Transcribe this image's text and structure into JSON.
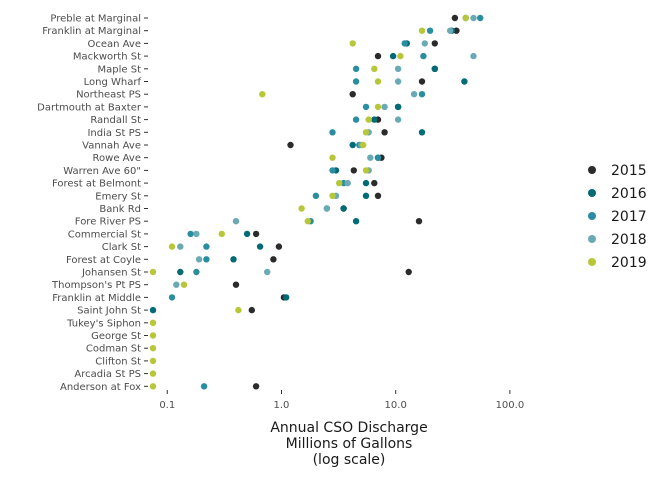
{
  "chart_data": {
    "type": "scatter",
    "xscale": "log",
    "xlim": [
      0.075,
      150
    ],
    "xticks": [
      "0.1",
      "1.0",
      "10.0",
      "100.0"
    ],
    "xlabel": [
      "Annual CSO Discharge",
      "Millions of Gallons",
      "(log scale)"
    ],
    "legend_position": "right",
    "grid": false,
    "categories": [
      "Preble at Marginal",
      "Franklin at Marginal",
      "Ocean Ave",
      "Mackworth St",
      "Maple St",
      "Long Wharf",
      "Northeast PS",
      "Dartmouth at Baxter",
      "Randall St",
      "India St PS",
      "Vannah Ave",
      "Rowe Ave",
      "Warren Ave 60\"",
      "Forest at Belmont",
      "Emery St",
      "Bank Rd",
      "Fore River PS",
      "Commercial St",
      "Clark St",
      "Forest at Coyle",
      "Johansen St",
      "Thompson's Pt PS",
      "Franklin at Middle",
      "Saint John St",
      "Tukey's Siphon",
      "George St",
      "Codman St",
      "Clifton St",
      "Arcadia St PS",
      "Anderson at Fox"
    ],
    "series": [
      {
        "name": "2015",
        "color": "#2b2b2b",
        "values": [
          33,
          34,
          22,
          7,
          22,
          17,
          4.2,
          10.5,
          7,
          8,
          1.2,
          7.5,
          4.3,
          6.5,
          7,
          3.5,
          16,
          0.6,
          0.95,
          0.85,
          13,
          0.4,
          1.05,
          0.55,
          null,
          null,
          null,
          null,
          null,
          0.6
        ]
      },
      {
        "name": "2016",
        "color": "#006b77",
        "values": [
          41,
          31,
          12.5,
          9.5,
          22,
          40,
          null,
          10.5,
          6.5,
          17,
          4.2,
          7,
          3,
          5.5,
          5.5,
          3.5,
          4.5,
          0.5,
          0.65,
          0.38,
          0.13,
          null,
          1.1,
          0.075,
          null,
          null,
          null,
          null,
          null,
          null
        ]
      },
      {
        "name": "2017",
        "color": "#2b8ea0",
        "values": [
          55,
          20,
          12,
          17.5,
          4.5,
          4.5,
          17,
          5.5,
          4.5,
          2.8,
          4.8,
          7,
          2.8,
          3.5,
          2,
          2.5,
          1.8,
          0.16,
          0.22,
          0.22,
          0.18,
          null,
          0.11,
          null,
          null,
          null,
          null,
          null,
          null,
          0.21
        ]
      },
      {
        "name": "2018",
        "color": "#6aaab5",
        "values": [
          48,
          30,
          18,
          48,
          10.5,
          10.5,
          14.5,
          8,
          10.5,
          5.8,
          5,
          6,
          5.8,
          3.8,
          3,
          2.5,
          0.4,
          0.18,
          0.13,
          0.19,
          0.75,
          0.12,
          null,
          null,
          null,
          null,
          null,
          null,
          null,
          null
        ]
      },
      {
        "name": "2019",
        "color": "#b8c73a",
        "values": [
          41,
          17,
          4.2,
          11,
          6.5,
          7,
          0.68,
          7,
          5.8,
          5.5,
          5.2,
          2.8,
          5.5,
          3.2,
          2.8,
          1.5,
          1.7,
          0.3,
          0.11,
          null,
          0.075,
          0.14,
          null,
          0.42,
          0.075,
          0.075,
          0.075,
          0.075,
          0.075,
          0.075
        ]
      }
    ]
  }
}
